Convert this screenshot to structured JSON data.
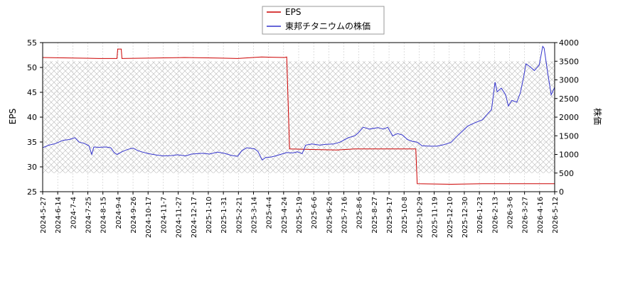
{
  "chart_data": {
    "type": "line",
    "title": "",
    "legend": {
      "placement": "top-center",
      "entries": [
        {
          "label": "EPS",
          "color": "#cc0000"
        },
        {
          "label": "東邦チタニウムの株価",
          "color": "#3333cc"
        }
      ]
    },
    "grid": true,
    "x_tick_labels": [
      "2024-5-27",
      "2024-6-14",
      "2024-7-4",
      "2024-7-25",
      "2024-8-15",
      "2024-9-4",
      "2024-9-26",
      "2024-10-17",
      "2024-11-7",
      "2024-11-27",
      "2024-12-17",
      "2025-1-10",
      "2025-1-31",
      "2025-2-21",
      "2025-3-14",
      "2025-4-4",
      "2025-4-24",
      "2025-5-19",
      "2025-6-6",
      "2025-6-26",
      "2025-7-16",
      "2025-8-6",
      "2025-8-27",
      "2025-9-17",
      "2025-10-8",
      "2025-10-29",
      "2025-11-19",
      "2025-12-10",
      "2025-12-30",
      "2026-1-23",
      "2026-2-13",
      "2026-3-6",
      "2026-3-27",
      "2026-4-16",
      "2026-5-12"
    ],
    "y_left": {
      "label": "EPS",
      "ticks": [
        25,
        30,
        35,
        40,
        45,
        50,
        55
      ],
      "range": [
        25,
        55
      ]
    },
    "y_right": {
      "label": "株価",
      "ticks": [
        0,
        500,
        1000,
        1500,
        2000,
        2500,
        3000,
        3500,
        4000
      ],
      "range": [
        0,
        4000
      ]
    },
    "x_range": [
      "2024-05-27",
      "2026-05-27"
    ],
    "series": [
      {
        "name": "EPS",
        "axis": "left",
        "color": "#cc0000",
        "points": [
          [
            "2024-05-27",
            52.0
          ],
          [
            "2024-07-10",
            51.9
          ],
          [
            "2024-08-15",
            51.8
          ],
          [
            "2024-09-10",
            51.8
          ],
          [
            "2024-09-11",
            53.7
          ],
          [
            "2024-09-16",
            53.7
          ],
          [
            "2024-09-17",
            51.8
          ],
          [
            "2024-11-01",
            51.9
          ],
          [
            "2024-12-15",
            52.0
          ],
          [
            "2025-01-31",
            51.9
          ],
          [
            "2025-03-01",
            51.8
          ],
          [
            "2025-04-04",
            52.1
          ],
          [
            "2025-05-07",
            52.0
          ],
          [
            "2025-05-10",
            52.1
          ],
          [
            "2025-05-14",
            33.6
          ],
          [
            "2025-06-15",
            33.5
          ],
          [
            "2025-07-20",
            33.4
          ],
          [
            "2025-08-15",
            33.6
          ],
          [
            "2025-10-01",
            33.6
          ],
          [
            "2025-11-10",
            33.6
          ],
          [
            "2025-11-12",
            26.6
          ],
          [
            "2025-12-30",
            26.5
          ],
          [
            "2026-02-13",
            26.6
          ],
          [
            "2026-05-27",
            26.6
          ]
        ]
      },
      {
        "name": "東邦チタニウムの株価",
        "axis": "right",
        "color": "#3333cc",
        "points": [
          [
            "2024-05-27",
            1180
          ],
          [
            "2024-06-05",
            1250
          ],
          [
            "2024-06-14",
            1290
          ],
          [
            "2024-06-25",
            1380
          ],
          [
            "2024-07-04",
            1400
          ],
          [
            "2024-07-12",
            1450
          ],
          [
            "2024-07-18",
            1330
          ],
          [
            "2024-07-25",
            1300
          ],
          [
            "2024-08-01",
            1230
          ],
          [
            "2024-08-05",
            1000
          ],
          [
            "2024-08-08",
            1200
          ],
          [
            "2024-08-15",
            1190
          ],
          [
            "2024-08-25",
            1200
          ],
          [
            "2024-09-01",
            1180
          ],
          [
            "2024-09-06",
            1050
          ],
          [
            "2024-09-10",
            1000
          ],
          [
            "2024-09-18",
            1080
          ],
          [
            "2024-09-26",
            1140
          ],
          [
            "2024-10-03",
            1170
          ],
          [
            "2024-10-10",
            1100
          ],
          [
            "2024-10-17",
            1060
          ],
          [
            "2024-10-25",
            1020
          ],
          [
            "2024-11-07",
            980
          ],
          [
            "2024-11-15",
            960
          ],
          [
            "2024-11-27",
            970
          ],
          [
            "2024-12-05",
            990
          ],
          [
            "2024-12-17",
            960
          ],
          [
            "2024-12-25",
            1010
          ],
          [
            "2025-01-10",
            1030
          ],
          [
            "2025-01-20",
            1010
          ],
          [
            "2025-01-31",
            1060
          ],
          [
            "2025-02-10",
            1030
          ],
          [
            "2025-02-21",
            970
          ],
          [
            "2025-03-01",
            950
          ],
          [
            "2025-03-07",
            1100
          ],
          [
            "2025-03-14",
            1180
          ],
          [
            "2025-03-25",
            1150
          ],
          [
            "2025-03-30",
            1080
          ],
          [
            "2025-04-05",
            850
          ],
          [
            "2025-04-10",
            920
          ],
          [
            "2025-04-17",
            930
          ],
          [
            "2025-04-24",
            960
          ],
          [
            "2025-05-01",
            1000
          ],
          [
            "2025-05-10",
            1050
          ],
          [
            "2025-05-19",
            1040
          ],
          [
            "2025-05-25",
            1070
          ],
          [
            "2025-06-01",
            1020
          ],
          [
            "2025-06-06",
            1250
          ],
          [
            "2025-06-15",
            1280
          ],
          [
            "2025-06-26",
            1250
          ],
          [
            "2025-07-05",
            1270
          ],
          [
            "2025-07-16",
            1280
          ],
          [
            "2025-07-25",
            1330
          ],
          [
            "2025-08-06",
            1450
          ],
          [
            "2025-08-15",
            1500
          ],
          [
            "2025-08-20",
            1580
          ],
          [
            "2025-08-27",
            1730
          ],
          [
            "2025-09-05",
            1680
          ],
          [
            "2025-09-17",
            1720
          ],
          [
            "2025-09-25",
            1680
          ],
          [
            "2025-10-01",
            1730
          ],
          [
            "2025-10-08",
            1500
          ],
          [
            "2025-10-15",
            1560
          ],
          [
            "2025-10-22",
            1520
          ],
          [
            "2025-10-29",
            1400
          ],
          [
            "2025-11-05",
            1350
          ],
          [
            "2025-11-12",
            1330
          ],
          [
            "2025-11-19",
            1230
          ],
          [
            "2025-12-01",
            1220
          ],
          [
            "2025-12-10",
            1220
          ],
          [
            "2025-12-20",
            1260
          ],
          [
            "2025-12-30",
            1320
          ],
          [
            "2026-01-10",
            1530
          ],
          [
            "2026-01-23",
            1760
          ],
          [
            "2026-02-01",
            1840
          ],
          [
            "2026-02-13",
            1930
          ],
          [
            "2026-02-20",
            2080
          ],
          [
            "2026-02-26",
            2200
          ],
          [
            "2026-03-01",
            2650
          ],
          [
            "2026-03-03",
            2940
          ],
          [
            "2026-03-06",
            2680
          ],
          [
            "2026-03-12",
            2780
          ],
          [
            "2026-03-18",
            2600
          ],
          [
            "2026-03-22",
            2300
          ],
          [
            "2026-03-27",
            2450
          ],
          [
            "2026-04-03",
            2400
          ],
          [
            "2026-04-08",
            2650
          ],
          [
            "2026-04-13",
            3100
          ],
          [
            "2026-04-16",
            3430
          ],
          [
            "2026-04-22",
            3350
          ],
          [
            "2026-04-28",
            3250
          ],
          [
            "2026-05-05",
            3400
          ],
          [
            "2026-05-10",
            3900
          ],
          [
            "2026-05-12",
            3850
          ],
          [
            "2026-05-17",
            3200
          ],
          [
            "2026-05-22",
            2600
          ],
          [
            "2026-05-27",
            2800
          ]
        ]
      }
    ]
  }
}
